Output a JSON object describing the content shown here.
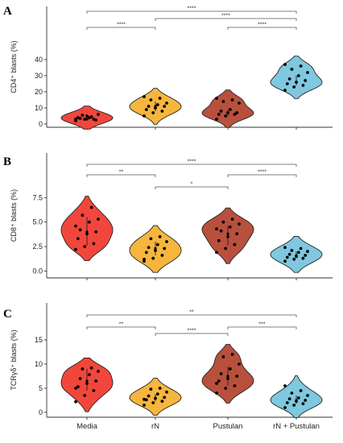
{
  "chart_data": [
    {
      "panel": "A",
      "type": "violin",
      "ylabel": "CD4⁺ blasts (%)",
      "ylim": [
        -2,
        44
      ],
      "yticks": [
        0,
        10,
        20,
        30,
        40
      ],
      "ytick_labels": [
        "0",
        "10",
        "20",
        "30",
        "40"
      ],
      "categories": [
        "Media",
        "rN",
        "Pustulan",
        "rN + Pustulan"
      ],
      "colors": [
        "#f2463c",
        "#f6b63e",
        "#b8503d",
        "#7fc8df"
      ],
      "groups": [
        {
          "name": "Media",
          "median": 3,
          "q1": 2.5,
          "q3": 5,
          "points": [
            2,
            3,
            3,
            4,
            5,
            2.5,
            3.5,
            4,
            6,
            5.5,
            4.5,
            3
          ]
        },
        {
          "name": "rN",
          "median": 11,
          "q1": 8,
          "q3": 14,
          "points": [
            5,
            7,
            8,
            9,
            10,
            11,
            11,
            12,
            13,
            15,
            16,
            17
          ]
        },
        {
          "name": "Pustulan",
          "median": 7,
          "q1": 5,
          "q3": 9,
          "points": [
            3,
            5,
            6,
            6,
            7,
            7,
            8,
            9,
            13,
            14,
            15,
            16
          ]
        },
        {
          "name": "rN + Pustulan",
          "median": 26,
          "q1": 24,
          "q3": 30,
          "points": [
            21,
            23,
            24,
            25,
            26,
            27,
            28,
            30,
            32,
            34,
            36,
            37
          ]
        }
      ],
      "brackets": [
        {
          "from": 0,
          "to": 3,
          "label": "****"
        },
        {
          "from": 1,
          "to": 3,
          "label": "****"
        },
        {
          "from": 0,
          "to": 1,
          "label": "****"
        },
        {
          "from": 2,
          "to": 3,
          "label": "****"
        }
      ]
    },
    {
      "panel": "B",
      "type": "violin",
      "ylabel": "CD8⁺ blasts (%)",
      "ylim": [
        -0.7,
        9.5
      ],
      "yticks": [
        0,
        2.5,
        5,
        7.5
      ],
      "ytick_labels": [
        "0.0",
        "2.5",
        "5.0",
        "7.5"
      ],
      "categories": [
        "Media",
        "rN",
        "Pustulan",
        "rN + Pustulan"
      ],
      "colors": [
        "#f2463c",
        "#f6b63e",
        "#b8503d",
        "#7fc8df"
      ],
      "groups": [
        {
          "name": "Media",
          "median": 4.0,
          "q1": 2.6,
          "q3": 5.5,
          "points": [
            2.2,
            2.5,
            2.8,
            3.3,
            3.8,
            4.0,
            4.2,
            5.0,
            5.3,
            5.7,
            6.5,
            4.6
          ]
        },
        {
          "name": "rN",
          "median": 2.3,
          "q1": 1.6,
          "q3": 3.0,
          "points": [
            1.0,
            1.3,
            1.6,
            1.9,
            2.1,
            2.3,
            2.4,
            2.7,
            3.0,
            3.3,
            3.5,
            1.2
          ]
        },
        {
          "name": "Pustulan",
          "median": 3.8,
          "q1": 2.6,
          "q3": 4.6,
          "points": [
            1.9,
            2.3,
            2.7,
            3.1,
            3.5,
            3.8,
            4.1,
            4.5,
            4.8,
            5.0,
            5.3,
            4.3
          ]
        },
        {
          "name": "rN + Pustulan",
          "median": 1.6,
          "q1": 1.3,
          "q3": 2.0,
          "points": [
            1.0,
            1.2,
            1.3,
            1.4,
            1.5,
            1.6,
            1.7,
            1.9,
            2.0,
            2.1,
            2.3,
            2.4
          ]
        }
      ],
      "brackets": [
        {
          "from": 0,
          "to": 3,
          "label": "****"
        },
        {
          "from": 0,
          "to": 1,
          "label": "**"
        },
        {
          "from": 2,
          "to": 3,
          "label": "****"
        },
        {
          "from": 1,
          "to": 2,
          "label": "*"
        }
      ]
    },
    {
      "panel": "C",
      "type": "violin",
      "ylabel": "TCRγδ⁺ blasts (%)",
      "ylim": [
        -1,
        17.5
      ],
      "yticks": [
        0,
        5,
        10,
        15
      ],
      "ytick_labels": [
        "0",
        "5",
        "10",
        "15"
      ],
      "categories": [
        "Media",
        "rN",
        "Pustulan",
        "rN + Pustulan"
      ],
      "colors": [
        "#f2463c",
        "#f6b63e",
        "#b8503d",
        "#7fc8df"
      ],
      "groups": [
        {
          "name": "Media",
          "median": 6.5,
          "q1": 4.5,
          "q3": 9.0,
          "points": [
            2.2,
            3.5,
            4.5,
            5.3,
            6.0,
            6.5,
            7.0,
            7.8,
            8.5,
            9.0,
            9.2,
            5.0
          ]
        },
        {
          "name": "rN",
          "median": 3.0,
          "q1": 2.3,
          "q3": 3.8,
          "points": [
            1.5,
            2.0,
            2.3,
            2.6,
            2.9,
            3.1,
            3.4,
            3.8,
            4.2,
            4.8,
            5.0,
            2.7
          ]
        },
        {
          "name": "Pustulan",
          "median": 7.5,
          "q1": 5.5,
          "q3": 9.5,
          "points": [
            4.0,
            5.0,
            5.5,
            6.5,
            7.0,
            7.5,
            8.0,
            9.0,
            10.0,
            11.5,
            12.0,
            6.0
          ]
        },
        {
          "name": "rN + Pustulan",
          "median": 2.5,
          "q1": 1.8,
          "q3": 3.5,
          "points": [
            1.0,
            1.5,
            1.8,
            2.0,
            2.3,
            2.5,
            2.8,
            3.0,
            3.5,
            4.0,
            4.5,
            5.5
          ]
        }
      ],
      "brackets": [
        {
          "from": 0,
          "to": 3,
          "label": "**"
        },
        {
          "from": 0,
          "to": 1,
          "label": "**"
        },
        {
          "from": 2,
          "to": 3,
          "label": "***"
        },
        {
          "from": 1,
          "to": 2,
          "label": "****"
        }
      ]
    }
  ]
}
